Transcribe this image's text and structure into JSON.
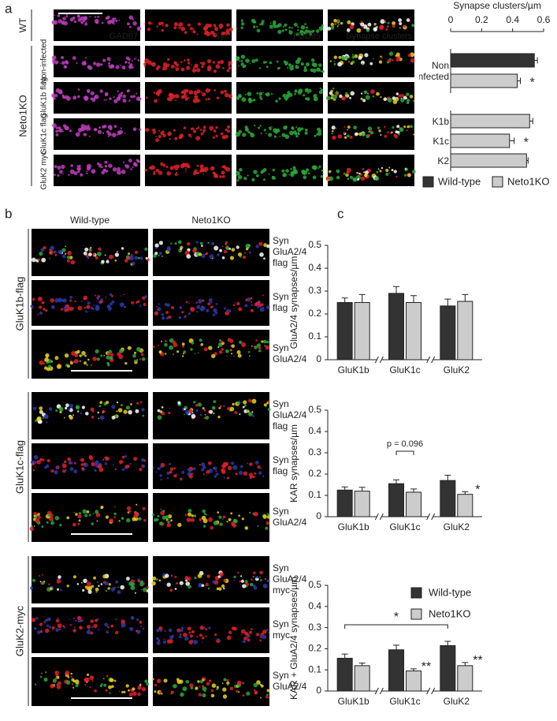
{
  "panel_a": {
    "label": "a",
    "group_labels": [
      "WT",
      "Neto1KO"
    ],
    "row_labels": [
      "Non-infected",
      "GluK1b flag",
      "GluK1c flag",
      "GluK2 myc"
    ],
    "channels": [
      {
        "name": "GAD67",
        "color": "#c03cc0"
      },
      {
        "name": "Syn",
        "color": "#e0202a"
      },
      {
        "name": "PSD95",
        "color": "#2aa83a"
      },
      {
        "name": "Synapse clusters",
        "color": "#e8d020"
      }
    ],
    "chart_data": {
      "type": "hbar",
      "title": "Synapse clusters/µm",
      "categories": [
        "Non infected",
        null,
        "K1b",
        "K1c",
        "K2"
      ],
      "series": [
        {
          "name": "Wild-type",
          "color": "#333333",
          "values": [
            0.54,
            null,
            null,
            null,
            null
          ],
          "errors": [
            0.02,
            null,
            null,
            null,
            null
          ],
          "significance": [
            null,
            null,
            null,
            null,
            null
          ]
        },
        {
          "name": "Neto1KO",
          "color": "#cccccc",
          "values": [
            null,
            0.43,
            0.51,
            0.38,
            0.49
          ],
          "errors": [
            null,
            0.02,
            0.02,
            0.03,
            0.01
          ],
          "significance": [
            null,
            "*",
            null,
            "*",
            null
          ]
        }
      ],
      "xlim": [
        0,
        0.6
      ],
      "xticks": [
        0,
        0.2,
        0.4,
        0.6
      ]
    }
  },
  "panel_b": {
    "label": "b",
    "columns": [
      "Wild-type",
      "Neto1KO"
    ],
    "groups": [
      {
        "label": "GluK1b-flag",
        "rows": [
          [
            {
              "text": "Syn",
              "color": "#e0202a"
            },
            {
              "text": "GluA2/4",
              "color": "#2aa83a"
            },
            {
              "text": "flag",
              "color": "#2a3aa8"
            }
          ],
          [
            {
              "text": "Syn",
              "color": "#e0202a"
            },
            {
              "text": "flag",
              "color": "#2a3aa8"
            }
          ],
          [
            {
              "text": "Syn",
              "color": "#e0202a"
            },
            {
              "text": "GluA2/4",
              "color": "#2aa83a"
            }
          ]
        ]
      },
      {
        "label": "GluK1c-flag",
        "rows": [
          [
            {
              "text": "Syn",
              "color": "#e0202a"
            },
            {
              "text": "GluA2/4",
              "color": "#2aa83a"
            },
            {
              "text": "flag",
              "color": "#2a3aa8"
            }
          ],
          [
            {
              "text": "Syn",
              "color": "#e0202a"
            },
            {
              "text": "flag",
              "color": "#2a3aa8"
            }
          ],
          [
            {
              "text": "Syn",
              "color": "#e0202a"
            },
            {
              "text": "GluA2/4",
              "color": "#2aa83a"
            }
          ]
        ]
      },
      {
        "label": "GluK2-myc",
        "rows": [
          [
            {
              "text": "Syn",
              "color": "#e0202a"
            },
            {
              "text": "GluA2/4",
              "color": "#2aa83a"
            },
            {
              "text": "myc",
              "color": "#2a3aa8"
            }
          ],
          [
            {
              "text": "Syn",
              "color": "#e0202a"
            },
            {
              "text": "myc",
              "color": "#2a3aa8"
            }
          ],
          [
            {
              "text": "Syn",
              "color": "#e0202a"
            },
            {
              "text": "GluA2/4",
              "color": "#2aa83a"
            }
          ]
        ]
      }
    ]
  },
  "panel_c": {
    "label": "c",
    "chart_data": [
      {
        "type": "bar",
        "y_label": "GluA2/4 synapses/µm",
        "categories": [
          "GluK1b",
          "GluK1c",
          "GluK2"
        ],
        "series": [
          {
            "name": "Wild-type",
            "color": "#333333",
            "values": [
              0.25,
              0.29,
              0.235
            ],
            "errors": [
              0.02,
              0.03,
              0.03
            ],
            "significance": [
              null,
              null,
              null
            ]
          },
          {
            "name": "Neto1KO",
            "color": "#cccccc",
            "values": [
              0.25,
              0.25,
              0.255
            ],
            "errors": [
              0.035,
              0.03,
              0.03
            ],
            "significance": [
              null,
              null,
              null
            ]
          }
        ],
        "ylim": [
          0,
          0.5
        ],
        "yticks": [
          0,
          0.1,
          0.2,
          0.3,
          0.4,
          0.5
        ],
        "brackets": []
      },
      {
        "type": "bar",
        "y_label": "KAR synapses/µm",
        "categories": [
          "GluK1b",
          "GluK1c",
          "GluK2"
        ],
        "series": [
          {
            "name": "Wild-type",
            "color": "#333333",
            "values": [
              0.125,
              0.155,
              0.17
            ],
            "errors": [
              0.015,
              0.018,
              0.025
            ],
            "significance": [
              null,
              null,
              null
            ]
          },
          {
            "name": "Neto1KO",
            "color": "#cccccc",
            "values": [
              0.12,
              0.115,
              0.105
            ],
            "errors": [
              0.018,
              0.015,
              0.012
            ],
            "significance": [
              null,
              null,
              "*"
            ]
          }
        ],
        "ylim": [
          0,
          0.5
        ],
        "yticks": [
          0,
          0.1,
          0.2,
          0.3,
          0.4,
          0.5
        ],
        "brackets": [
          "p = 0.096"
        ]
      },
      {
        "type": "bar",
        "y_label": "KAR + GluA2/4 synapses/µm",
        "categories": [
          "GluK1b",
          "GluK1c",
          "GluK2"
        ],
        "series": [
          {
            "name": "Wild-type",
            "color": "#333333",
            "values": [
              0.155,
              0.195,
              0.215
            ],
            "errors": [
              0.02,
              0.022,
              0.02
            ],
            "significance": [
              null,
              null,
              null
            ]
          },
          {
            "name": "Neto1KO",
            "color": "#cccccc",
            "values": [
              0.12,
              0.095,
              0.12
            ],
            "errors": [
              0.012,
              0.01,
              0.015
            ],
            "significance": [
              null,
              "**",
              "**"
            ]
          }
        ],
        "ylim": [
          0,
          0.5
        ],
        "yticks": [
          0,
          0.1,
          0.2,
          0.3,
          0.4,
          0.5
        ],
        "brackets": [
          "*"
        ],
        "legend": true
      }
    ]
  }
}
